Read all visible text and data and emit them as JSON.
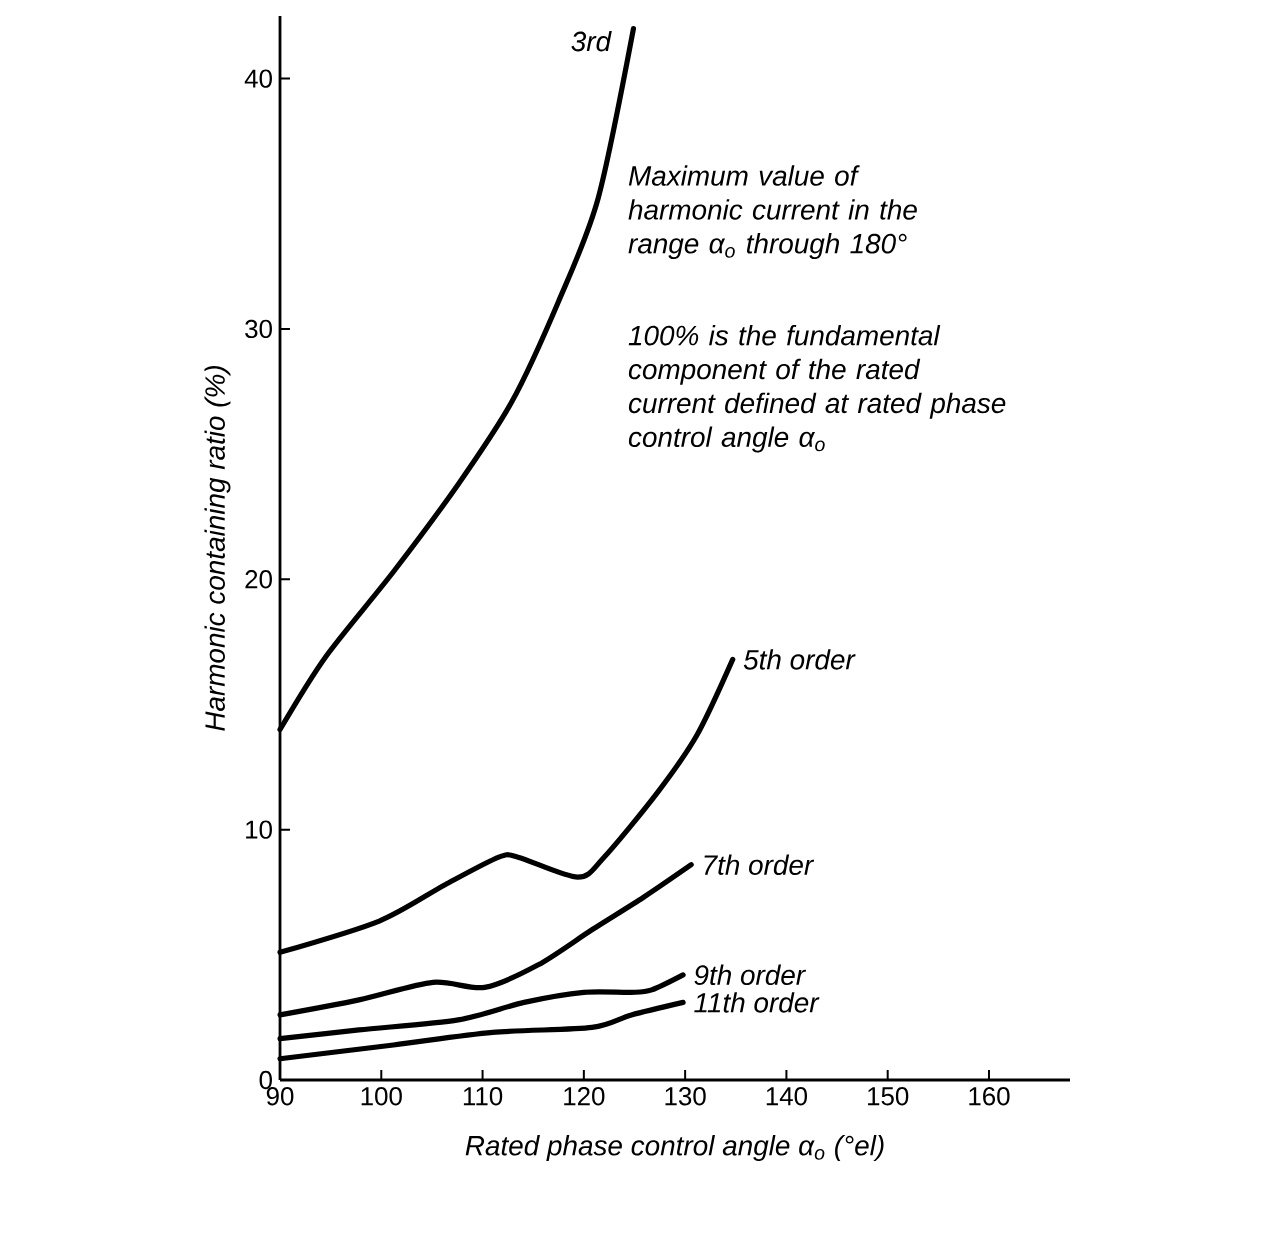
{
  "chart_data": {
    "type": "line",
    "xlabel": "Rated phase control angle α$_{o}$ (°el)",
    "ylabel": "Harmonic containing ratio (%)",
    "xlim": [
      90,
      168
    ],
    "ylim": [
      0,
      42.5
    ],
    "xticks": [
      90,
      100,
      110,
      120,
      130,
      140,
      150,
      160
    ],
    "yticks": [
      0,
      10,
      20,
      30,
      40
    ],
    "grid": false,
    "legend": false,
    "marker": "none",
    "line_style": "solid",
    "annotations": [
      "Maximum value of harmonic current in the range α$_{o}$ through 180°",
      "100% is the fundamental component of the rated current defined at rated phase control angle α$_{o}$"
    ],
    "series": [
      {
        "name": "3rd",
        "color": "#000000",
        "x": [
          90,
          94.5,
          101.2,
          107.6,
          112.9,
          117.5,
          121.4,
          124.9
        ],
        "values": [
          14.0,
          16.9,
          20.3,
          23.8,
          27.1,
          31.1,
          35.2,
          42.0
        ]
      },
      {
        "name": "5th order",
        "color": "#000000",
        "x": [
          90,
          99.8,
          106.3,
          111.6,
          113.5,
          119.4,
          122,
          127.3,
          131.2,
          134.7
        ],
        "values": [
          5.1,
          6.35,
          7.8,
          8.9,
          8.9,
          8.1,
          8.9,
          11.5,
          13.8,
          16.8
        ]
      },
      {
        "name": "7th order",
        "color": "#000000",
        "x": [
          90,
          97.8,
          105.1,
          110.2,
          115.5,
          120.8,
          125.9,
          130.6
        ],
        "values": [
          2.6,
          3.2,
          3.9,
          3.7,
          4.6,
          6.0,
          7.3,
          8.6
        ]
      },
      {
        "name": "9th order",
        "color": "#000000",
        "x": [
          90,
          97.8,
          107.6,
          114.1,
          120,
          124.7,
          126.7,
          129.8
        ],
        "values": [
          1.65,
          2.0,
          2.4,
          3.1,
          3.5,
          3.5,
          3.6,
          4.2
        ]
      },
      {
        "name": "11th order",
        "color": "#000000",
        "x": [
          90,
          101.2,
          111,
          120.8,
          124.7,
          129.8
        ],
        "values": [
          0.85,
          1.4,
          1.9,
          2.1,
          2.6,
          3.1
        ]
      }
    ]
  }
}
